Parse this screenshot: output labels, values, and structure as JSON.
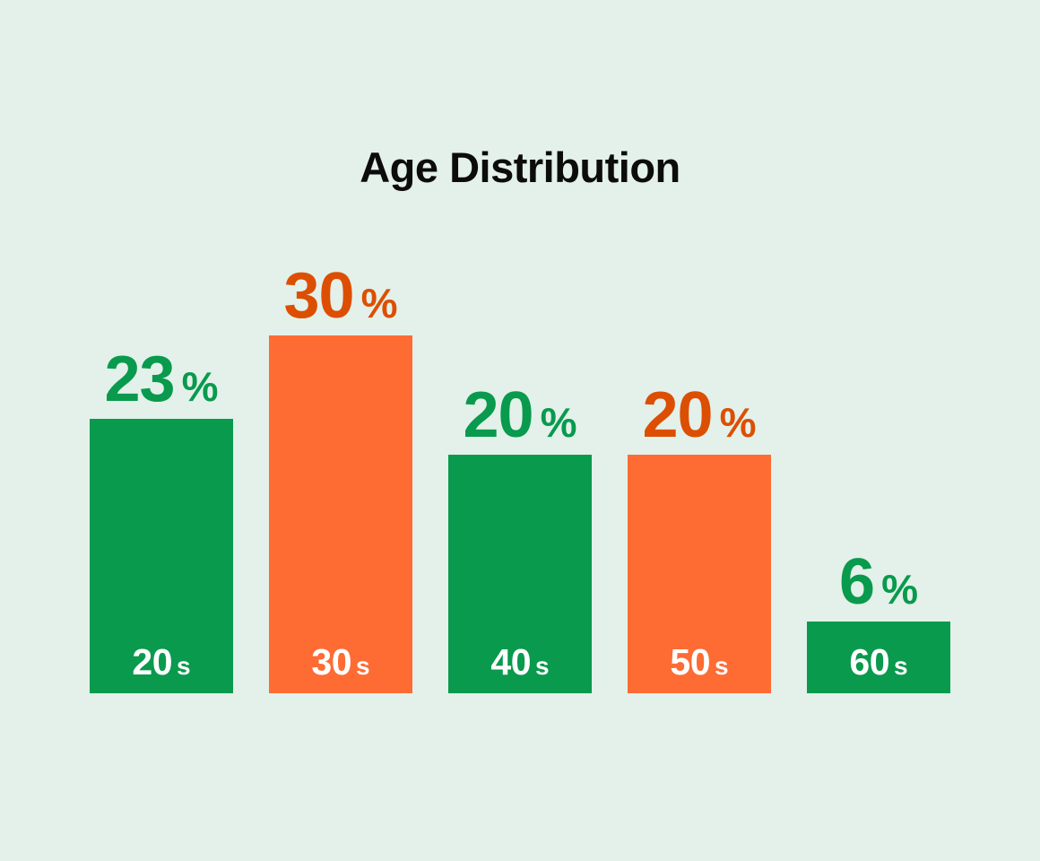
{
  "chart_data": {
    "type": "bar",
    "title": "Age Distribution",
    "categories": [
      "20s",
      "30s",
      "40s",
      "50s",
      "60s"
    ],
    "values": [
      23,
      30,
      20,
      20,
      6
    ],
    "unit": "%",
    "xlabel": "",
    "ylabel": "",
    "ylim": [
      0,
      30
    ],
    "grid": false,
    "legend": false,
    "background_color": "#e3f1ea",
    "title_color": "#0c0c0c",
    "category_text_color": "#ffffff",
    "green_accent": "#099a4d",
    "orange_bar_accent": "#fe6b33",
    "orange_label_accent": "#dc4f03",
    "bars": [
      {
        "category_number": "20",
        "category_suffix": "s",
        "value": 23,
        "value_text": "23",
        "unit": "%",
        "bar_color": "#099a4d",
        "value_color": "#099a4d"
      },
      {
        "category_number": "30",
        "category_suffix": "s",
        "value": 30,
        "value_text": "30",
        "unit": "%",
        "bar_color": "#fe6b33",
        "value_color": "#dc4f03"
      },
      {
        "category_number": "40",
        "category_suffix": "s",
        "value": 20,
        "value_text": "20",
        "unit": "%",
        "bar_color": "#099a4d",
        "value_color": "#099a4d"
      },
      {
        "category_number": "50",
        "category_suffix": "s",
        "value": 20,
        "value_text": "20",
        "unit": "%",
        "bar_color": "#fe6b33",
        "value_color": "#dc4f03"
      },
      {
        "category_number": "60",
        "category_suffix": "s",
        "value": 6,
        "value_text": "6",
        "unit": "%",
        "bar_color": "#099a4d",
        "value_color": "#099a4d"
      }
    ]
  }
}
